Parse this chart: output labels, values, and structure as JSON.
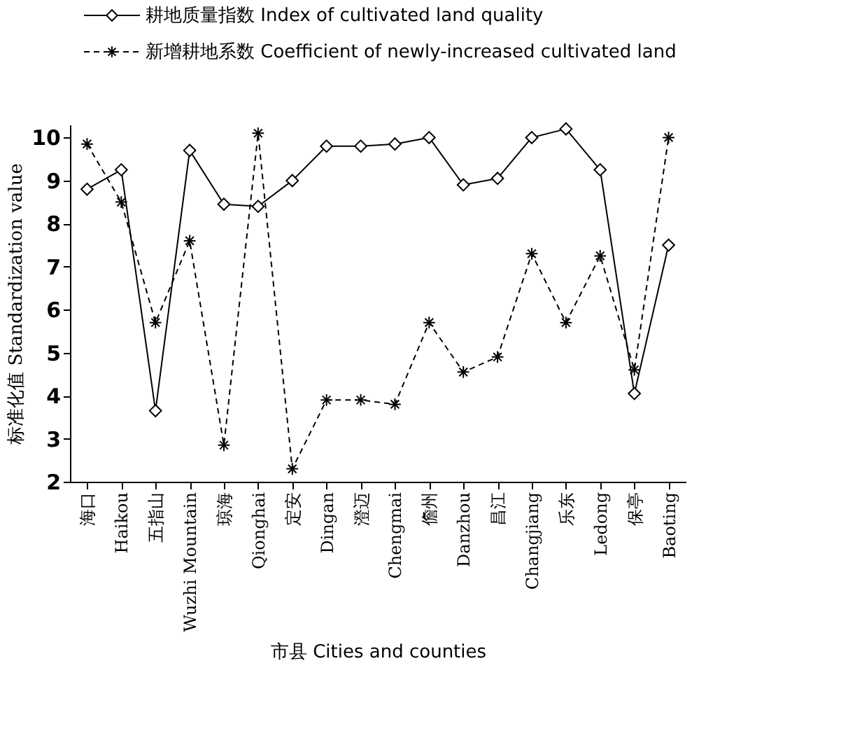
{
  "chart_data": {
    "type": "line",
    "categories": [
      "海口",
      "Haikou",
      "五指山",
      "Wuzhi Mountain",
      "琼海",
      "Qionghai",
      "定安",
      "Dingan",
      "澄迈",
      "Chengmai",
      "儋州",
      "Danzhou",
      "昌江",
      "Changjiang",
      "乐东",
      "Ledong",
      "保亭",
      "Baoting"
    ],
    "series": [
      {
        "name": "耕地质量指数 Index of cultivated land quality",
        "color": "#000000",
        "marker": "diamond",
        "line_style": "solid",
        "values": [
          8.8,
          9.25,
          3.65,
          9.7,
          8.45,
          8.4,
          9.0,
          9.8,
          9.8,
          9.85,
          10.0,
          8.9,
          9.05,
          10.0,
          10.2,
          9.25,
          4.05,
          7.5
        ]
      },
      {
        "name": "新增耕地系数 Coefficient of newly-increased cultivated land",
        "color": "#000000",
        "marker": "cross",
        "line_style": "dashed",
        "values": [
          9.85,
          8.5,
          5.7,
          7.6,
          2.85,
          10.1,
          2.3,
          3.9,
          3.9,
          3.8,
          5.7,
          4.55,
          4.9,
          7.3,
          5.7,
          7.25,
          4.6,
          10.0
        ]
      }
    ],
    "xlabel": "市县 Cities and counties",
    "ylabel": "标准化值 Standardization value",
    "ylim": [
      2,
      10.3
    ],
    "yticks": [
      2,
      3,
      4,
      5,
      6,
      7,
      8,
      9,
      10
    ],
    "grid": false,
    "legend": "top left"
  }
}
